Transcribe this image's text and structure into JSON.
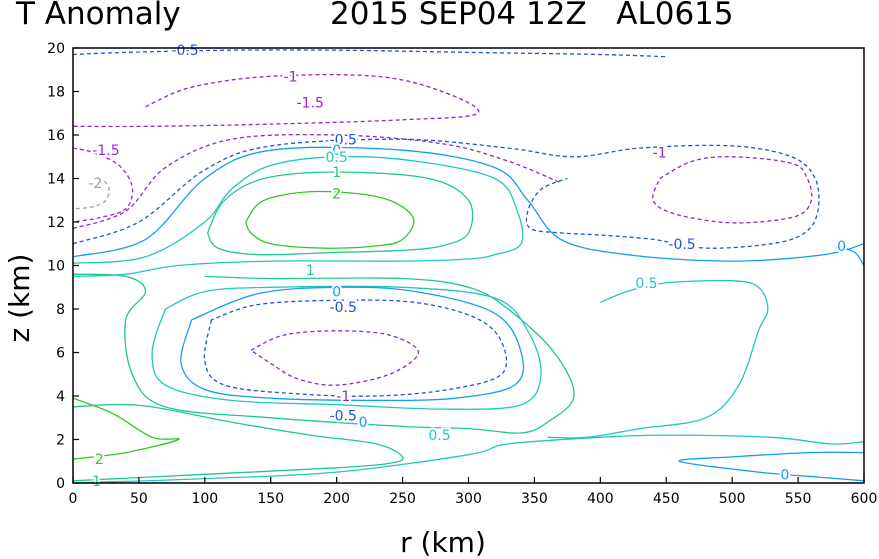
{
  "chart_data": {
    "type": "contour",
    "title_left": "T Anomaly",
    "title_right": "2015 SEP04 12Z   AL0615",
    "xlabel": "r (km)",
    "ylabel": "z (km)",
    "xlim": [
      0,
      600
    ],
    "ylim": [
      0,
      20
    ],
    "xticks": [
      "0",
      "50",
      "100",
      "150",
      "200",
      "250",
      "300",
      "350",
      "400",
      "450",
      "500",
      "550",
      "600"
    ],
    "yticks": [
      "0",
      "2",
      "4",
      "6",
      "8",
      "10",
      "12",
      "14",
      "16",
      "18",
      "20"
    ],
    "level_colors": {
      "-2": "#a0a0a0",
      "-1.5": "#a020f0",
      "-1": "#8c28d0",
      "-0.5": "#2050e0",
      "0": "#10a0f0",
      "0.5": "#20c8c0",
      "1": "#20c890",
      "2": "#30c820"
    },
    "contours": [
      {
        "level": "-0.5",
        "dash": true,
        "points": [
          [
            0,
            19.7
          ],
          [
            40,
            19.8
          ],
          [
            120,
            19.9
          ],
          [
            200,
            19.9
          ],
          [
            300,
            19.8
          ],
          [
            400,
            19.7
          ],
          [
            450,
            19.6
          ]
        ]
      },
      {
        "level": "-1",
        "dash": true,
        "points": [
          [
            55,
            17.3
          ],
          [
            90,
            18.2
          ],
          [
            150,
            18.7
          ],
          [
            230,
            18.7
          ],
          [
            280,
            18.0
          ],
          [
            307,
            17.0
          ],
          [
            250,
            16.7
          ],
          [
            150,
            16.5
          ],
          [
            60,
            16.4
          ],
          [
            0,
            16.4
          ]
        ]
      },
      {
        "level": "-1.5",
        "dash": true,
        "points": [
          [
            0,
            15.4
          ],
          [
            15,
            15.2
          ],
          [
            35,
            14.6
          ],
          [
            45,
            13.6
          ],
          [
            40,
            12.6
          ],
          [
            20,
            12.2
          ],
          [
            0,
            12.0
          ]
        ]
      },
      {
        "level": "-2",
        "dash": true,
        "points": [
          [
            20,
            14.1
          ],
          [
            27,
            13.6
          ],
          [
            25,
            13.0
          ],
          [
            15,
            12.7
          ],
          [
            0,
            12.6
          ]
        ]
      },
      {
        "level": "-1",
        "dash": true,
        "points": [
          [
            0,
            11.7
          ],
          [
            40,
            12.5
          ],
          [
            70,
            14.5
          ],
          [
            120,
            15.8
          ],
          [
            200,
            16.0
          ],
          [
            280,
            15.6
          ],
          [
            330,
            14.8
          ],
          [
            370,
            13.8
          ]
        ]
      },
      {
        "level": "-0.5",
        "dash": true,
        "points": [
          [
            0,
            11.0
          ],
          [
            50,
            12.0
          ],
          [
            100,
            14.4
          ],
          [
            150,
            15.5
          ],
          [
            250,
            15.8
          ],
          [
            330,
            15.4
          ],
          [
            380,
            15.0
          ],
          [
            430,
            15.4
          ],
          [
            500,
            15.5
          ],
          [
            545,
            15.0
          ],
          [
            563,
            14.0
          ],
          [
            565,
            12.5
          ],
          [
            555,
            11.5
          ],
          [
            530,
            11.0
          ],
          [
            480,
            10.8
          ],
          [
            440,
            11.2
          ],
          [
            400,
            11.4
          ],
          [
            370,
            11.5
          ],
          [
            347,
            11.7
          ],
          [
            345,
            12.5
          ],
          [
            355,
            13.5
          ],
          [
            375,
            14.0
          ]
        ]
      },
      {
        "level": "-1",
        "dash": true,
        "points": [
          [
            445,
            14.0
          ],
          [
            470,
            14.8
          ],
          [
            500,
            15.0
          ],
          [
            545,
            14.7
          ],
          [
            557,
            14.0
          ],
          [
            560,
            13.0
          ],
          [
            550,
            12.3
          ],
          [
            520,
            12.0
          ],
          [
            490,
            12.0
          ],
          [
            455,
            12.4
          ],
          [
            440,
            13.0
          ],
          [
            445,
            14.0
          ]
        ]
      },
      {
        "level": "0",
        "dash": false,
        "points": [
          [
            0,
            10.4
          ],
          [
            55,
            11.2
          ],
          [
            100,
            14.0
          ],
          [
            150,
            15.3
          ],
          [
            250,
            15.3
          ],
          [
            320,
            14.5
          ],
          [
            345,
            13.0
          ],
          [
            370,
            11.2
          ],
          [
            420,
            10.5
          ],
          [
            500,
            10.2
          ],
          [
            570,
            10.5
          ],
          [
            600,
            11.0
          ]
        ]
      },
      {
        "level": "0",
        "dash": false,
        "points": [
          [
            580,
            10.9
          ],
          [
            593,
            10.6
          ],
          [
            600,
            10.0
          ]
        ]
      },
      {
        "level": "0.5",
        "dash": false,
        "points": [
          [
            0,
            10.1
          ],
          [
            55,
            10.4
          ],
          [
            100,
            12.0
          ],
          [
            120,
            13.5
          ],
          [
            150,
            14.6
          ],
          [
            200,
            15.0
          ],
          [
            260,
            14.8
          ],
          [
            320,
            14.0
          ],
          [
            337,
            12.5
          ],
          [
            340,
            11.0
          ],
          [
            320,
            10.5
          ],
          [
            300,
            10.3
          ],
          [
            250,
            10.2
          ],
          [
            150,
            10.2
          ],
          [
            80,
            10.0
          ],
          [
            40,
            9.6
          ],
          [
            0,
            9.5
          ]
        ]
      },
      {
        "level": "1",
        "dash": false,
        "points": [
          [
            102,
            11.5
          ],
          [
            115,
            13.0
          ],
          [
            145,
            14.0
          ],
          [
            200,
            14.3
          ],
          [
            270,
            14.0
          ],
          [
            300,
            13.0
          ],
          [
            300,
            11.5
          ],
          [
            280,
            10.9
          ],
          [
            250,
            10.7
          ],
          [
            200,
            10.6
          ],
          [
            140,
            10.5
          ],
          [
            110,
            10.8
          ],
          [
            102,
            11.5
          ]
        ]
      },
      {
        "level": "2",
        "dash": false,
        "points": [
          [
            131,
            12.0
          ],
          [
            145,
            13.0
          ],
          [
            185,
            13.4
          ],
          [
            235,
            13.1
          ],
          [
            258,
            12.2
          ],
          [
            250,
            11.2
          ],
          [
            230,
            10.9
          ],
          [
            190,
            10.8
          ],
          [
            150,
            11.0
          ],
          [
            135,
            11.5
          ],
          [
            131,
            12.0
          ]
        ]
      },
      {
        "level": "1",
        "dash": false,
        "points": [
          [
            0,
            9.6
          ],
          [
            40,
            9.5
          ],
          [
            55,
            8.8
          ],
          [
            40,
            7.5
          ],
          [
            45,
            5.0
          ],
          [
            70,
            3.5
          ],
          [
            150,
            3.0
          ],
          [
            250,
            2.6
          ],
          [
            300,
            2.5
          ],
          [
            340,
            2.3
          ],
          [
            360,
            2.8
          ],
          [
            380,
            4.0
          ],
          [
            365,
            6.0
          ],
          [
            330,
            8.0
          ],
          [
            300,
            9.0
          ],
          [
            250,
            9.4
          ],
          [
            150,
            9.4
          ],
          [
            100,
            9.5
          ]
        ]
      },
      {
        "level": "0.5",
        "dash": false,
        "points": [
          [
            70,
            8.0
          ],
          [
            60,
            6.0
          ],
          [
            70,
            4.5
          ],
          [
            120,
            3.8
          ],
          [
            200,
            3.6
          ],
          [
            280,
            3.4
          ],
          [
            340,
            3.6
          ],
          [
            355,
            5.0
          ],
          [
            345,
            7.0
          ],
          [
            320,
            8.5
          ],
          [
            250,
            9.0
          ],
          [
            150,
            9.0
          ],
          [
            100,
            8.8
          ],
          [
            70,
            8.0
          ]
        ]
      },
      {
        "level": "0",
        "dash": false,
        "points": [
          [
            90,
            7.5
          ],
          [
            82,
            5.5
          ],
          [
            100,
            4.3
          ],
          [
            150,
            3.9
          ],
          [
            230,
            3.8
          ],
          [
            290,
            3.9
          ],
          [
            335,
            4.5
          ],
          [
            340,
            6.0
          ],
          [
            320,
            7.8
          ],
          [
            260,
            8.8
          ],
          [
            200,
            9.0
          ],
          [
            140,
            8.7
          ],
          [
            90,
            7.5
          ]
        ]
      },
      {
        "level": "-0.5",
        "dash": true,
        "points": [
          [
            105,
            7.5
          ],
          [
            100,
            5.6
          ],
          [
            115,
            4.5
          ],
          [
            170,
            4.1
          ],
          [
            230,
            4.0
          ],
          [
            285,
            4.3
          ],
          [
            325,
            5.0
          ],
          [
            325,
            6.5
          ],
          [
            305,
            7.6
          ],
          [
            260,
            8.3
          ],
          [
            200,
            8.4
          ],
          [
            140,
            8.2
          ],
          [
            105,
            7.5
          ]
        ]
      },
      {
        "level": "-1",
        "dash": true,
        "points": [
          [
            135,
            6.1
          ],
          [
            160,
            6.8
          ],
          [
            200,
            7.0
          ],
          [
            240,
            6.8
          ],
          [
            262,
            6.0
          ],
          [
            240,
            5.0
          ],
          [
            200,
            4.5
          ],
          [
            170,
            4.8
          ],
          [
            150,
            5.5
          ],
          [
            135,
            6.1
          ]
        ]
      },
      {
        "level": "0.5",
        "dash": false,
        "points": [
          [
            400,
            8.3
          ],
          [
            420,
            8.8
          ],
          [
            450,
            9.2
          ],
          [
            500,
            9.3
          ],
          [
            520,
            9.0
          ],
          [
            527,
            8.0
          ],
          [
            520,
            7.0
          ],
          [
            505,
            4.5
          ],
          [
            480,
            3.0
          ],
          [
            430,
            2.5
          ],
          [
            390,
            2.1
          ],
          [
            360,
            2.1
          ]
        ]
      },
      {
        "level": "2",
        "dash": false,
        "points": [
          [
            0,
            3.9
          ],
          [
            30,
            3.2
          ],
          [
            60,
            2.1
          ],
          [
            80,
            2.0
          ],
          [
            40,
            1.4
          ],
          [
            0,
            1.1
          ]
        ]
      },
      {
        "level": "1",
        "dash": false,
        "points": [
          [
            0,
            0.1
          ],
          [
            100,
            0.4
          ],
          [
            200,
            0.7
          ],
          [
            240,
            0.9
          ],
          [
            250,
            1.2
          ],
          [
            230,
            1.8
          ],
          [
            180,
            2.2
          ],
          [
            120,
            2.8
          ],
          [
            60,
            3.5
          ],
          [
            30,
            3.6
          ],
          [
            0,
            3.5
          ]
        ]
      },
      {
        "level": "0.5",
        "dash": false,
        "points": [
          [
            0,
            0.0
          ],
          [
            100,
            0.2
          ],
          [
            200,
            0.5
          ],
          [
            300,
            1.3
          ],
          [
            330,
            1.8
          ],
          [
            400,
            2.1
          ],
          [
            450,
            2.2
          ],
          [
            530,
            2.1
          ],
          [
            575,
            1.8
          ],
          [
            600,
            1.9
          ]
        ]
      },
      {
        "level": "0",
        "dash": false,
        "points": [
          [
            600,
            0.1
          ],
          [
            560,
            0.3
          ],
          [
            520,
            0.5
          ],
          [
            460,
            1.0
          ],
          [
            500,
            1.2
          ],
          [
            560,
            1.4
          ],
          [
            600,
            1.4
          ]
        ]
      }
    ],
    "contour_labels": [
      {
        "text": "-0.5",
        "level": "-0.5",
        "x": 85,
        "y": 19.9
      },
      {
        "text": "-1",
        "level": "-1",
        "x": 165,
        "y": 18.7
      },
      {
        "text": "-1.5",
        "level": "-1.5",
        "x": 180,
        "y": 17.5
      },
      {
        "text": "-1.5",
        "level": "-1.5",
        "x": 25,
        "y": 15.3
      },
      {
        "text": "-2",
        "level": "-2",
        "x": 17,
        "y": 13.8
      },
      {
        "text": "-0.5",
        "level": "-0.5",
        "x": 205,
        "y": 15.8
      },
      {
        "text": "0",
        "level": "0",
        "x": 200,
        "y": 15.3
      },
      {
        "text": "0.5",
        "level": "0.5",
        "x": 200,
        "y": 15.0
      },
      {
        "text": "1",
        "level": "1",
        "x": 200,
        "y": 14.3
      },
      {
        "text": "2",
        "level": "2",
        "x": 200,
        "y": 13.3
      },
      {
        "text": "1",
        "level": "1",
        "x": 180,
        "y": 9.8
      },
      {
        "text": "-1",
        "level": "-1",
        "x": 445,
        "y": 15.2
      },
      {
        "text": "-0.5",
        "level": "-0.5",
        "x": 462,
        "y": 11.0
      },
      {
        "text": "0",
        "level": "0",
        "x": 583,
        "y": 10.9
      },
      {
        "text": "0.5",
        "level": "0.5",
        "x": 435,
        "y": 9.2
      },
      {
        "text": "0",
        "level": "0",
        "x": 200,
        "y": 8.8
      },
      {
        "text": "-0.5",
        "level": "-0.5",
        "x": 205,
        "y": 8.1
      },
      {
        "text": "-1",
        "level": "-1",
        "x": 205,
        "y": 4.0
      },
      {
        "text": "-0.5",
        "level": "-0.5",
        "x": 205,
        "y": 3.1
      },
      {
        "text": "0",
        "level": "0",
        "x": 220,
        "y": 2.8
      },
      {
        "text": "0.5",
        "level": "0.5",
        "x": 278,
        "y": 2.2
      },
      {
        "text": "2",
        "level": "2",
        "x": 20,
        "y": 1.1
      },
      {
        "text": "1",
        "level": "1",
        "x": 18,
        "y": 0.1
      },
      {
        "text": "0",
        "level": "0",
        "x": 540,
        "y": 0.4
      }
    ]
  }
}
